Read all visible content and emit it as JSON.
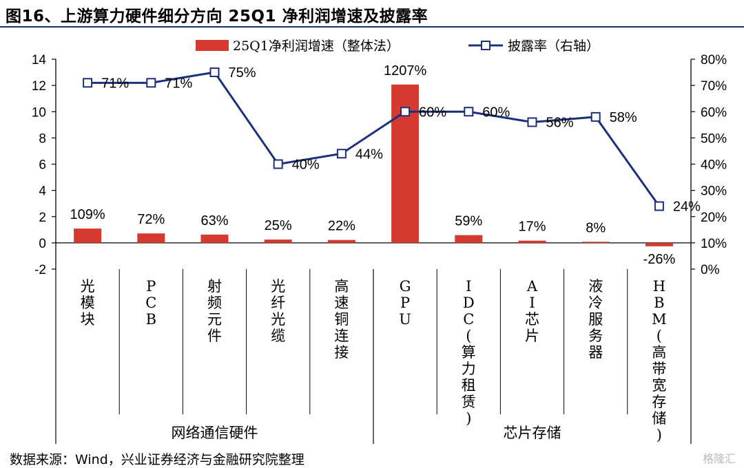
{
  "header": {
    "title": "图16、上游算力硬件细分方向 25Q1 净利润增速及披露率"
  },
  "footer": {
    "source": "数据来源：Wind，兴业证券经济与金融研究院整理",
    "watermark": "格隆汇"
  },
  "colors": {
    "bar": "#d63a2f",
    "line": "#1b2f7a",
    "axis": "#000000"
  },
  "chart_data": {
    "type": "bar+line",
    "title": "图16、上游算力硬件细分方向 25Q1 净利润增速及披露率",
    "categories": [
      "光模块",
      "PCB",
      "射频元件",
      "光纤光缆",
      "高速铜连接",
      "GPU",
      "IDC(算力租赁)",
      "AI芯片",
      "液冷服务器",
      "HBM(高带宽存储)"
    ],
    "groups": [
      {
        "label": "网络通信硬件",
        "count": 5
      },
      {
        "label": "芯片存储",
        "count": 5
      }
    ],
    "series": [
      {
        "name": "25Q1净利润增速（整体法）",
        "type": "bar",
        "axis": "left",
        "values": [
          1.09,
          0.72,
          0.63,
          0.25,
          0.22,
          12.07,
          0.59,
          0.17,
          0.08,
          -0.26
        ],
        "labels": [
          "109%",
          "72%",
          "63%",
          "25%",
          "22%",
          "1207%",
          "59%",
          "17%",
          "8%",
          "-26%"
        ]
      },
      {
        "name": "披露率（右轴）",
        "type": "line",
        "axis": "right",
        "values": [
          71,
          71,
          75,
          40,
          44,
          60,
          60,
          56,
          58,
          24
        ],
        "labels": [
          "71%",
          "71%",
          "75%",
          "40%",
          "44%",
          "60%",
          "60%",
          "56%",
          "58%",
          "24%"
        ]
      }
    ],
    "y_left": {
      "min": -2,
      "max": 14,
      "ticks": [
        "-2",
        "0",
        "2",
        "4",
        "6",
        "8",
        "10",
        "12",
        "14"
      ]
    },
    "y_right": {
      "min": 0,
      "max": 80,
      "ticks": [
        "0%",
        "10%",
        "20%",
        "30%",
        "40%",
        "50%",
        "60%",
        "70%",
        "80%"
      ]
    },
    "legend_position": "top",
    "grid": false
  }
}
